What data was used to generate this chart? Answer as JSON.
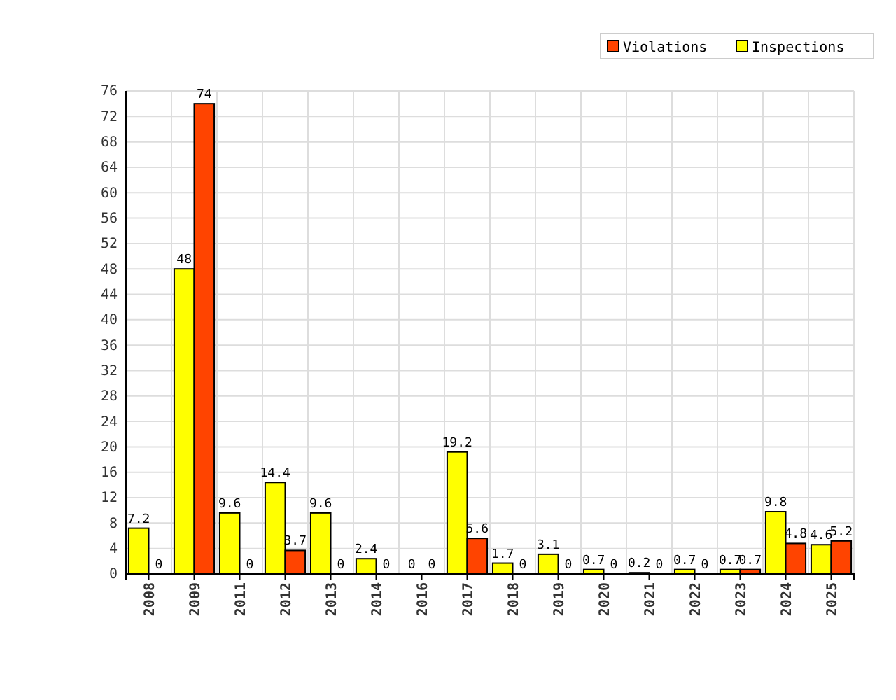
{
  "chart_data": {
    "type": "bar",
    "categories": [
      "2008",
      "2009",
      "2011",
      "2012",
      "2013",
      "2014",
      "2016",
      "2017",
      "2018",
      "2019",
      "2020",
      "2021",
      "2022",
      "2023",
      "2024",
      "2025"
    ],
    "series": [
      {
        "name": "Inspections",
        "color": "#ffff00",
        "values": [
          7.2,
          48,
          9.6,
          14.4,
          9.6,
          2.4,
          0,
          19.2,
          1.7,
          3.1,
          0.7,
          0.2,
          0.7,
          0.7,
          9.8,
          4.6
        ]
      },
      {
        "name": "Violations",
        "color": "#ff4400",
        "values": [
          0,
          74,
          0,
          3.7,
          0,
          0,
          0,
          5.6,
          0,
          0,
          0,
          0,
          0,
          0.7,
          4.8,
          5.2
        ]
      }
    ],
    "ylim": [
      0,
      76
    ],
    "yticks": [
      0,
      4,
      8,
      12,
      16,
      20,
      24,
      28,
      32,
      36,
      40,
      44,
      48,
      52,
      56,
      60,
      64,
      68,
      72,
      76
    ],
    "grid": true,
    "legend": "top right",
    "data_labels": true
  }
}
